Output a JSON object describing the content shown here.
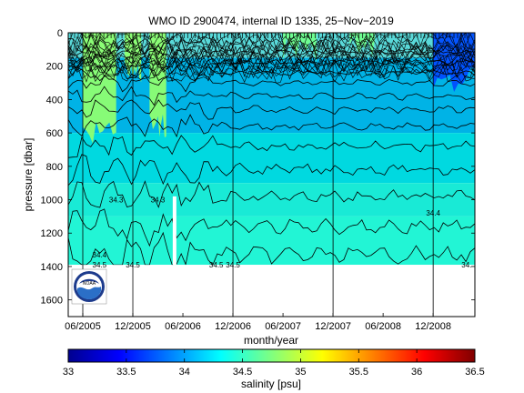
{
  "chart_data": [
    {
      "type": "heatmap",
      "title": "WMO ID 2900474, internal ID 1335, 25−Nov−2019",
      "xlabel": "month/year",
      "ylabel": "pressure [dbar]",
      "x_range": [
        "2005-06",
        "2009-05"
      ],
      "x_ticks": [
        "06/2005",
        "12/2005",
        "06/2006",
        "12/2006",
        "06/2007",
        "12/2007",
        "06/2008",
        "12/2008"
      ],
      "y_range": [
        0,
        1700
      ],
      "y_reversed": true,
      "y_ticks": [
        0,
        200,
        400,
        600,
        800,
        1000,
        1200,
        1400,
        1600
      ],
      "data_max_pressure": 1390,
      "color_bands": [
        {
          "from_pressure": 0,
          "to_pressure": 150,
          "color": "#59d9d9"
        },
        {
          "from_pressure": 150,
          "to_pressure": 600,
          "color": "#00b3e6"
        },
        {
          "from_pressure": 600,
          "to_pressure": 900,
          "color": "#00d9e0"
        },
        {
          "from_pressure": 900,
          "to_pressure": 1100,
          "color": "#19ead6"
        },
        {
          "from_pressure": 1100,
          "to_pressure": 1390,
          "color": "#22f5d5"
        }
      ],
      "high_salinity_patches": [
        {
          "from": "2005-06",
          "to": "2005-10",
          "max_pressure": 600,
          "value": 34.8
        },
        {
          "from": "2005-11",
          "to": "2006-01",
          "max_pressure": 250,
          "value": 34.8
        },
        {
          "from": "2006-02",
          "to": "2006-04",
          "max_pressure": 550,
          "value": 34.8
        },
        {
          "from": "2007-06",
          "to": "2007-10",
          "max_pressure": 100,
          "value": 34.7
        },
        {
          "from": "2008-02",
          "to": "2008-05",
          "max_pressure": 80,
          "value": 34.7
        }
      ],
      "low_salinity_patches": [
        {
          "from": "2008-12",
          "to": "2009-05",
          "max_pressure": 280,
          "value": 33.7
        }
      ],
      "contour_levels_pressure": [
        120,
        180,
        240,
        300,
        380,
        460,
        560,
        680,
        820,
        980,
        1160,
        1330
      ],
      "contour_labels": [
        {
          "text": "34.3",
          "x": "2006-03",
          "pressure": 1000
        },
        {
          "text": "34.4",
          "x": "2005-08",
          "pressure": 1330
        },
        {
          "text": "34.5",
          "x": "2005-08",
          "pressure": 1390
        },
        {
          "text": "34.5",
          "x": "2005-12",
          "pressure": 1390
        },
        {
          "text": "34.5",
          "x": "2006-10",
          "pressure": 1390
        },
        {
          "text": "34.5",
          "x": "2006-12",
          "pressure": 1390
        },
        {
          "text": "34.",
          "x": "2009-04",
          "pressure": 1390
        },
        {
          "text": "34.5",
          "x": "2005-08",
          "pressure": 130
        },
        {
          "text": "34.3",
          "x": "2005-10",
          "pressure": 1000
        },
        {
          "text": "34.4",
          "x": "2008-12",
          "pressure": 1080
        }
      ],
      "profile_lines": [
        "2005-06",
        "2005-12",
        "2006-12",
        "2007-12",
        "2008-12"
      ],
      "white_gaps": [
        {
          "x": "2006-05",
          "from_pressure": 980,
          "to_pressure": 1390
        }
      ],
      "logo": "NOAA"
    },
    {
      "type": "colorbar",
      "xlabel": "salinity [psu]",
      "range": [
        33,
        36.5
      ],
      "ticks": [
        "33",
        "33.5",
        "34",
        "34.5",
        "35",
        "35.5",
        "36",
        "36.5"
      ],
      "colormap": "jet"
    }
  ]
}
